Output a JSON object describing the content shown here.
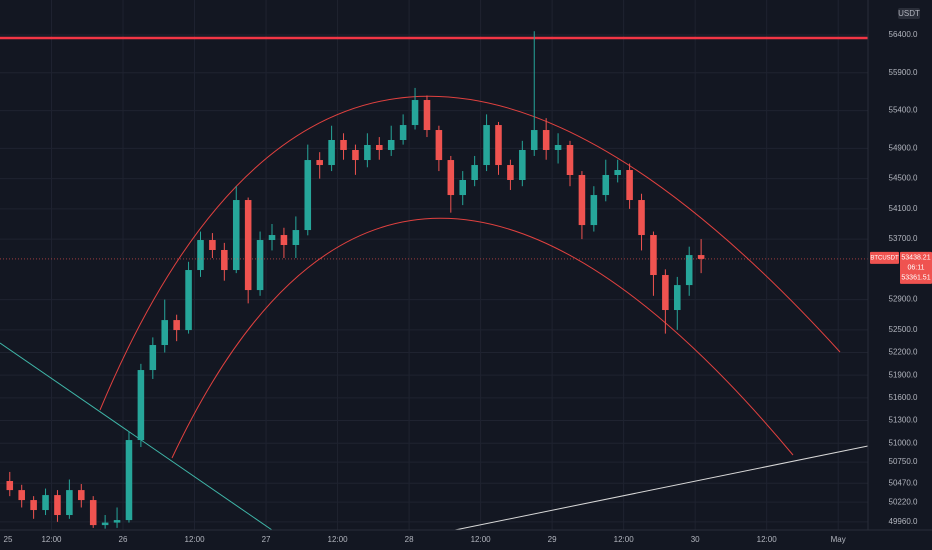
{
  "chart_data": {
    "type": "candlestick",
    "symbol": "BTCUSDT",
    "currency": "USDT",
    "x": [
      5,
      7,
      9,
      11,
      13,
      15,
      17,
      19,
      21,
      23,
      25,
      27,
      29,
      31,
      33,
      35,
      37,
      39,
      41,
      43,
      45,
      47,
      49,
      51,
      53,
      55,
      57,
      59,
      61,
      63,
      65,
      67,
      69,
      71,
      73,
      75,
      77,
      79,
      81,
      83,
      85,
      87,
      89,
      91,
      93,
      95,
      97,
      99,
      101,
      103,
      105,
      107,
      109,
      111,
      113,
      115,
      117,
      119,
      121
    ],
    "open": [
      50500,
      50380,
      50248,
      50116,
      50314,
      50050,
      50380,
      50248,
      49917,
      49950,
      49983,
      51042,
      51968,
      52299,
      52629,
      52497,
      53291,
      53688,
      53556,
      53291,
      54217,
      53026,
      53688,
      53754,
      53622,
      53820,
      54746,
      54680,
      55011,
      54879,
      54746,
      54945,
      54879,
      55011,
      55209,
      55540,
      55143,
      54746,
      54283,
      54482,
      54680,
      55209,
      54680,
      54482,
      54879,
      55143,
      54879,
      54945,
      54548,
      53886,
      54283,
      54548,
      54614,
      54217,
      53754,
      53225,
      52762,
      53092,
      53489
    ],
    "high": [
      50620,
      50450,
      50300,
      50400,
      50380,
      50520,
      50460,
      50300,
      50050,
      50150,
      51150,
      52050,
      52400,
      52900,
      52700,
      53400,
      53800,
      53780,
      53650,
      54400,
      54250,
      53800,
      53900,
      53850,
      54000,
      54950,
      54850,
      55200,
      55100,
      54950,
      55100,
      55050,
      55200,
      55350,
      55700,
      55600,
      55200,
      54800,
      54600,
      54800,
      55350,
      55250,
      54750,
      55000,
      56450,
      55300,
      55100,
      55000,
      54600,
      54400,
      54750,
      54750,
      54700,
      54300,
      53800,
      53300,
      53200,
      53600,
      53700
    ],
    "low": [
      50300,
      50150,
      50000,
      50050,
      49960,
      50000,
      50150,
      49880,
      49870,
      49880,
      49950,
      50950,
      51850,
      52200,
      52350,
      52450,
      53200,
      53450,
      53150,
      53250,
      52850,
      52950,
      53550,
      53450,
      53450,
      53750,
      54500,
      54600,
      54750,
      54550,
      54650,
      54750,
      54800,
      54950,
      55150,
      55050,
      54600,
      54050,
      54150,
      54400,
      54600,
      54550,
      54350,
      54400,
      54800,
      54750,
      54700,
      54400,
      53700,
      53800,
      54200,
      54450,
      54100,
      53550,
      52950,
      52450,
      52500,
      52950,
      53250
    ],
    "close": [
      50380,
      50248,
      50116,
      50314,
      50050,
      50380,
      50248,
      49917,
      49950,
      49983,
      51042,
      51968,
      52299,
      52629,
      52497,
      53291,
      53688,
      53556,
      53291,
      54217,
      53026,
      53688,
      53754,
      53622,
      53820,
      54746,
      54680,
      55011,
      54879,
      54746,
      54945,
      54879,
      55011,
      55209,
      55540,
      55143,
      54746,
      54283,
      54482,
      54680,
      55209,
      54680,
      54482,
      54879,
      55143,
      54879,
      54945,
      54548,
      53886,
      54283,
      54548,
      54614,
      54217,
      53754,
      53225,
      52762,
      53092,
      53489,
      53438
    ],
    "up_color": "#26a69a",
    "down_color": "#ef5350",
    "xlim": [
      3.36,
      149
    ],
    "xticks": [
      {
        "value": 0,
        "label": "25"
      },
      {
        "value": 12,
        "label": "12:00"
      },
      {
        "value": 24,
        "label": "26"
      },
      {
        "value": 36,
        "label": "12:00"
      },
      {
        "value": 48,
        "label": "27"
      },
      {
        "value": 60,
        "label": "12:00"
      },
      {
        "value": 72,
        "label": "28"
      },
      {
        "value": 84,
        "label": "12:00"
      },
      {
        "value": 96,
        "label": "29"
      },
      {
        "value": 108,
        "label": "12:00"
      },
      {
        "value": 120,
        "label": "30"
      },
      {
        "value": 132,
        "label": "12:00"
      },
      {
        "value": 144,
        "label": "May"
      }
    ],
    "ylim": [
      49852,
      56863
    ],
    "yticks": [
      {
        "value": 56400,
        "label": "56400.0"
      },
      {
        "value": 55900,
        "label": "55900.0"
      },
      {
        "value": 55400,
        "label": "55400.0"
      },
      {
        "value": 54900,
        "label": "54900.0"
      },
      {
        "value": 54500,
        "label": "54500.0"
      },
      {
        "value": 54100,
        "label": "54100.0"
      },
      {
        "value": 53700,
        "label": "53700.0"
      },
      {
        "value": 52900,
        "label": "52900.0"
      },
      {
        "value": 52500,
        "label": "52500.0"
      },
      {
        "value": 52200,
        "label": "52200.0"
      },
      {
        "value": 51900,
        "label": "51900.0"
      },
      {
        "value": 51600,
        "label": "51600.0"
      },
      {
        "value": 51300,
        "label": "51300.0"
      },
      {
        "value": 51000,
        "label": "51000.0"
      },
      {
        "value": 50750,
        "label": "50750.0"
      },
      {
        "value": 50470,
        "label": "50470.0"
      },
      {
        "value": 50220,
        "label": "50220.0"
      },
      {
        "value": 49960,
        "label": "49960.0"
      }
    ],
    "last_price": 53438.21,
    "countdown": "06:11",
    "second_price": 53361.51,
    "horizontal_line": {
      "value": 56360,
      "color": "#f23645"
    },
    "grid": true
  }
}
